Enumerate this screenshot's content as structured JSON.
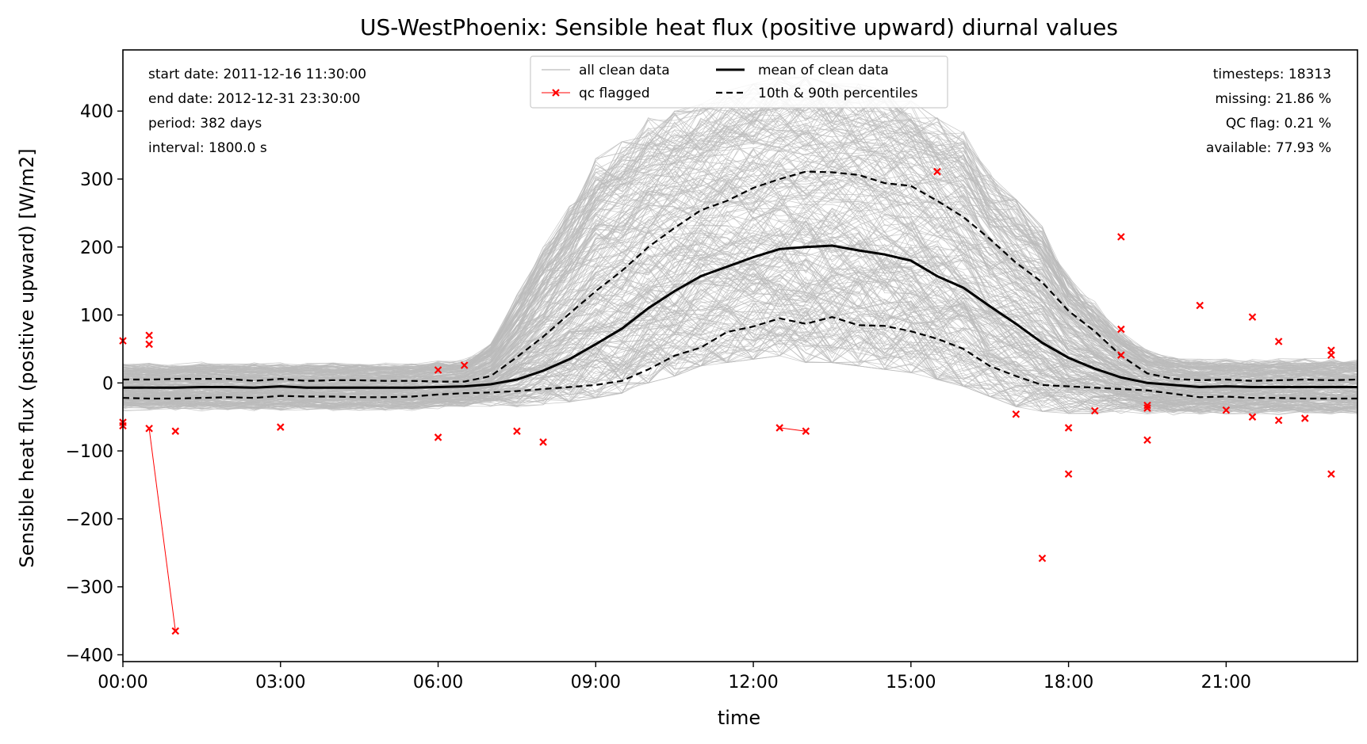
{
  "chart_data": {
    "type": "line",
    "title": "US-WestPhoenix: Sensible heat flux (positive upward) diurnal values",
    "xlabel": "time",
    "ylabel": "Sensible heat flux (positive upward) [W/m2]",
    "xlim": [
      0,
      23.5
    ],
    "ylim": [
      -410,
      490
    ],
    "x_ticks": [
      {
        "value": 0,
        "label": "00:00"
      },
      {
        "value": 3,
        "label": "03:00"
      },
      {
        "value": 6,
        "label": "06:00"
      },
      {
        "value": 9,
        "label": "09:00"
      },
      {
        "value": 12,
        "label": "12:00"
      },
      {
        "value": 15,
        "label": "15:00"
      },
      {
        "value": 18,
        "label": "18:00"
      },
      {
        "value": 21,
        "label": "21:00"
      }
    ],
    "y_ticks": [
      {
        "value": 400,
        "label": "400"
      },
      {
        "value": 300,
        "label": "300"
      },
      {
        "value": 200,
        "label": "200"
      },
      {
        "value": 100,
        "label": "100"
      },
      {
        "value": 0,
        "label": "0"
      },
      {
        "value": -100,
        "label": "−100"
      },
      {
        "value": -200,
        "label": "−200"
      },
      {
        "value": -300,
        "label": "−300"
      },
      {
        "value": -400,
        "label": "−400"
      }
    ],
    "x": [
      0,
      0.5,
      1,
      1.5,
      2,
      2.5,
      3,
      3.5,
      4,
      4.5,
      5,
      5.5,
      6,
      6.5,
      7,
      7.5,
      8,
      8.5,
      9,
      9.5,
      10,
      10.5,
      11,
      11.5,
      12,
      12.5,
      13,
      13.5,
      14,
      14.5,
      15,
      15.5,
      16,
      16.5,
      17,
      17.5,
      18,
      18.5,
      19,
      19.5,
      20,
      20.5,
      21,
      21.5,
      22,
      22.5,
      23,
      23.5
    ],
    "series": [
      {
        "name": "mean of clean data",
        "style": "solid",
        "color": "#000000",
        "values": [
          -7,
          -7,
          -7,
          -6,
          -6,
          -7,
          -5,
          -7,
          -7,
          -7,
          -7,
          -7,
          -6,
          -5,
          -2,
          5,
          18,
          35,
          57,
          80,
          110,
          135,
          157,
          171,
          185,
          197,
          200,
          202,
          195,
          189,
          180,
          157,
          140,
          113,
          87,
          59,
          37,
          21,
          8,
          0,
          -3,
          -6,
          -5,
          -6,
          -6,
          -6,
          -6,
          -6
        ]
      },
      {
        "name": "10th & 90th percentiles",
        "style": "dashed",
        "color": "#000000",
        "upper": [
          5,
          5,
          6,
          6,
          6,
          3,
          6,
          3,
          4,
          4,
          3,
          3,
          2,
          2,
          10,
          38,
          68,
          102,
          135,
          165,
          200,
          228,
          254,
          268,
          287,
          300,
          311,
          310,
          306,
          294,
          290,
          268,
          244,
          212,
          177,
          148,
          106,
          76,
          40,
          14,
          6,
          4,
          5,
          3,
          4,
          5,
          4,
          5
        ],
        "lower": [
          -22,
          -23,
          -23,
          -22,
          -21,
          -22,
          -19,
          -20,
          -20,
          -21,
          -21,
          -20,
          -17,
          -15,
          -14,
          -12,
          -9,
          -6,
          -3,
          3,
          20,
          40,
          52,
          75,
          83,
          95,
          87,
          97,
          85,
          84,
          76,
          65,
          50,
          25,
          10,
          -3,
          -5,
          -7,
          -9,
          -11,
          -16,
          -21,
          -20,
          -22,
          -22,
          -23,
          -23,
          -23
        ]
      }
    ],
    "clean_data_spread": {
      "name": "all clean data",
      "color": "#bbbbbb",
      "upper_envelope": [
        25,
        25,
        25,
        25,
        25,
        25,
        25,
        25,
        25,
        25,
        25,
        25,
        30,
        30,
        55,
        120,
        190,
        250,
        320,
        345,
        380,
        390,
        400,
        420,
        430,
        440,
        440,
        430,
        430,
        420,
        405,
        380,
        360,
        300,
        260,
        220,
        150,
        110,
        70,
        45,
        35,
        30,
        30,
        30,
        30,
        30,
        30,
        30
      ],
      "lower_envelope": [
        -35,
        -35,
        -35,
        -35,
        -35,
        -35,
        -35,
        -35,
        -35,
        -35,
        -35,
        -35,
        -32,
        -30,
        -28,
        -25,
        -22,
        -18,
        -12,
        -5,
        10,
        20,
        35,
        40,
        45,
        50,
        40,
        40,
        35,
        30,
        25,
        15,
        5,
        -10,
        -25,
        -32,
        -35,
        -35,
        -35,
        -38,
        -40,
        -40,
        -40,
        -40,
        -40,
        -40,
        -40,
        -40
      ]
    },
    "qc_flagged": {
      "name": "qc flagged",
      "color": "#ff0000",
      "points": [
        {
          "x": 0,
          "y": 62
        },
        {
          "x": 0,
          "y": -58
        },
        {
          "x": 0,
          "y": -63
        },
        {
          "x": 0.5,
          "y": 70
        },
        {
          "x": 0.5,
          "y": 57
        },
        {
          "x": 0.5,
          "y": -67
        },
        {
          "x": 1,
          "y": -365
        },
        {
          "x": 1,
          "y": -71
        },
        {
          "x": 3,
          "y": -65
        },
        {
          "x": 6,
          "y": 19
        },
        {
          "x": 6,
          "y": -80
        },
        {
          "x": 6.5,
          "y": 26
        },
        {
          "x": 7.5,
          "y": -71
        },
        {
          "x": 8,
          "y": -87
        },
        {
          "x": 12.5,
          "y": -66
        },
        {
          "x": 13,
          "y": -71
        },
        {
          "x": 15.5,
          "y": 311
        },
        {
          "x": 17,
          "y": -46
        },
        {
          "x": 17.5,
          "y": -258
        },
        {
          "x": 18,
          "y": -66
        },
        {
          "x": 18,
          "y": -134
        },
        {
          "x": 18.5,
          "y": -41
        },
        {
          "x": 19,
          "y": 215
        },
        {
          "x": 19,
          "y": 79
        },
        {
          "x": 19,
          "y": 41
        },
        {
          "x": 19.5,
          "y": -33
        },
        {
          "x": 19.5,
          "y": -37
        },
        {
          "x": 19.5,
          "y": -84
        },
        {
          "x": 20.5,
          "y": 114
        },
        {
          "x": 21,
          "y": -40
        },
        {
          "x": 21.5,
          "y": 97
        },
        {
          "x": 21.5,
          "y": -50
        },
        {
          "x": 22,
          "y": 61
        },
        {
          "x": 22,
          "y": -55
        },
        {
          "x": 22.5,
          "y": -52
        },
        {
          "x": 23,
          "y": 48
        },
        {
          "x": 23,
          "y": 41
        },
        {
          "x": 23,
          "y": -134
        }
      ],
      "segments": [
        [
          {
            "x": 0.5,
            "y": -67
          },
          {
            "x": 1,
            "y": -365
          }
        ],
        [
          {
            "x": 12.5,
            "y": -66
          },
          {
            "x": 13,
            "y": -71
          }
        ]
      ]
    },
    "legend": {
      "placement": "top-center",
      "entries": [
        {
          "label": "all clean data",
          "style": "grey-line"
        },
        {
          "label": "mean of clean data",
          "style": "solid-black"
        },
        {
          "label": "qc flagged",
          "style": "red-x-line"
        },
        {
          "label": "10th & 90th percentiles",
          "style": "dashed-black"
        }
      ]
    },
    "annotations_left": [
      "start date: 2011-12-16 11:30:00",
      "end date: 2012-12-31 23:30:00",
      "period: 382 days",
      "interval: 1800.0 s"
    ],
    "annotations_right": [
      "timesteps: 18313",
      "missing: 21.86 %",
      "QC flag: 0.21 %",
      "available: 77.93 %"
    ],
    "grid": false
  }
}
